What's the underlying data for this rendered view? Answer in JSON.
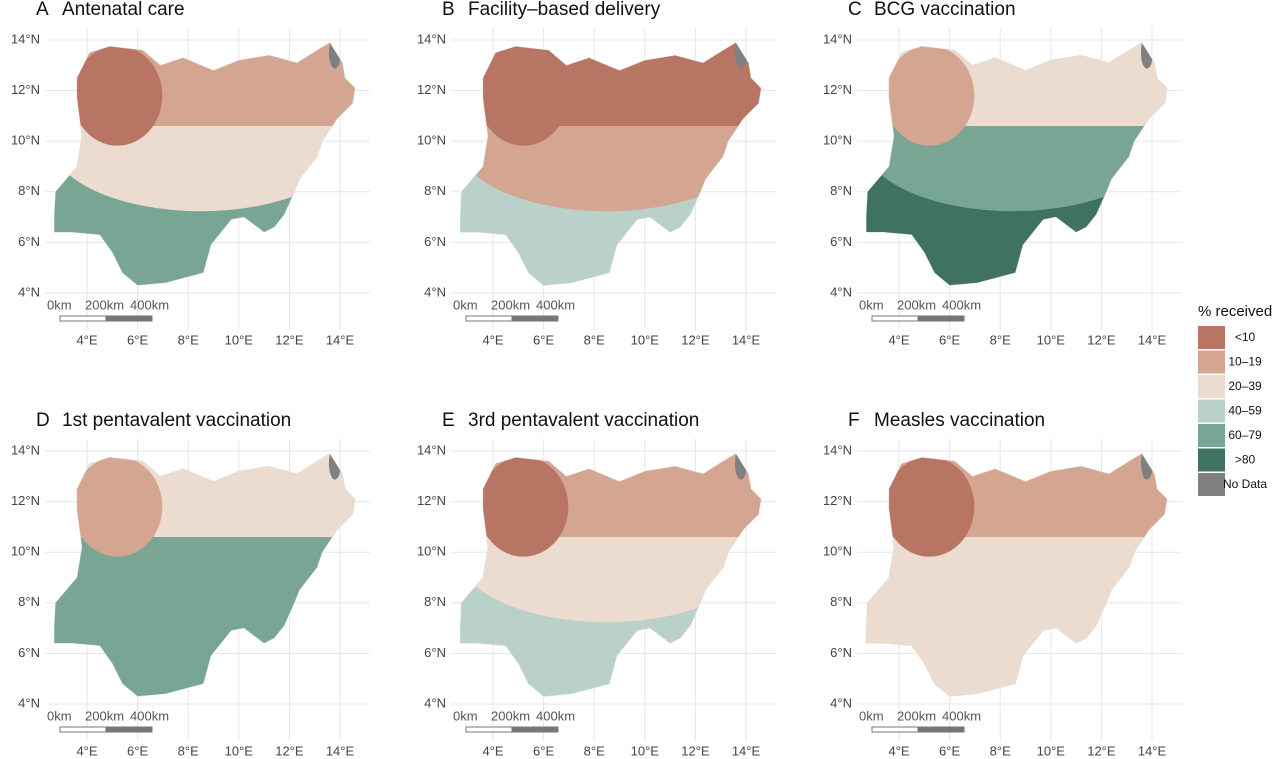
{
  "panels": [
    {
      "label": "A",
      "title": "Antenatal care"
    },
    {
      "label": "B",
      "title": "Facility–based delivery"
    },
    {
      "label": "C",
      "title": "BCG vaccination"
    },
    {
      "label": "D",
      "title": "1st pentavalent vaccination"
    },
    {
      "label": "E",
      "title": "3rd pentavalent vaccination"
    },
    {
      "label": "F",
      "title": "Measles vaccination"
    }
  ],
  "latitude_ticks": [
    {
      "value": 14,
      "label": "14°N"
    },
    {
      "value": 12,
      "label": "12°N"
    },
    {
      "value": 10,
      "label": "10°N"
    },
    {
      "value": 8,
      "label": "8°N"
    },
    {
      "value": 6,
      "label": "6°N"
    },
    {
      "value": 4,
      "label": "4°N"
    }
  ],
  "longitude_ticks": [
    {
      "value": 4,
      "label": "4°E"
    },
    {
      "value": 6,
      "label": "6°E"
    },
    {
      "value": 8,
      "label": "8°E"
    },
    {
      "value": 10,
      "label": "10°E"
    },
    {
      "value": 12,
      "label": "12°E"
    },
    {
      "value": 14,
      "label": "14°E"
    }
  ],
  "scale_bar": [
    "0km",
    "200km",
    "400km"
  ],
  "legend": {
    "title": "% received",
    "items": [
      {
        "label": "<10",
        "color": "#b97563"
      },
      {
        "label": "10–19",
        "color": "#d4a590"
      },
      {
        "label": "20–39",
        "color": "#ecdccf"
      },
      {
        "label": "40–59",
        "color": "#b9d1c8"
      },
      {
        "label": "60–79",
        "color": "#79a595"
      },
      {
        "label": ">80",
        "color": "#3f7261"
      },
      {
        "label": "No Data",
        "color": "#808080"
      }
    ]
  }
}
